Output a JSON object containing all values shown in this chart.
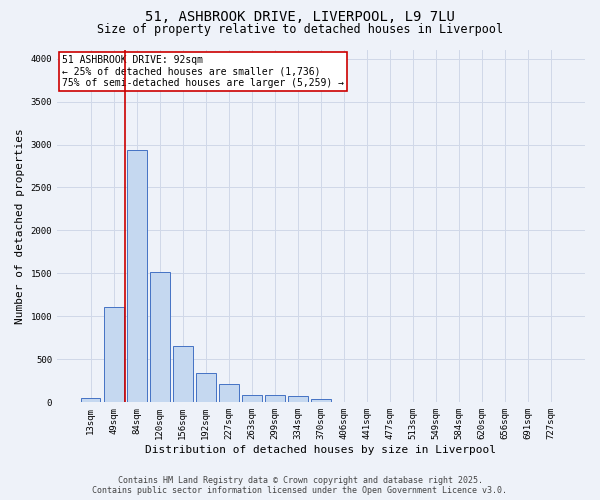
{
  "title_line1": "51, ASHBROOK DRIVE, LIVERPOOL, L9 7LU",
  "title_line2": "Size of property relative to detached houses in Liverpool",
  "xlabel": "Distribution of detached houses by size in Liverpool",
  "ylabel": "Number of detached properties",
  "categories": [
    "13sqm",
    "49sqm",
    "84sqm",
    "120sqm",
    "156sqm",
    "192sqm",
    "227sqm",
    "263sqm",
    "299sqm",
    "334sqm",
    "370sqm",
    "406sqm",
    "441sqm",
    "477sqm",
    "513sqm",
    "549sqm",
    "584sqm",
    "620sqm",
    "656sqm",
    "691sqm",
    "727sqm"
  ],
  "bar_values": [
    50,
    1110,
    2940,
    1520,
    650,
    340,
    215,
    90,
    90,
    75,
    35,
    5,
    0,
    0,
    0,
    0,
    0,
    0,
    0,
    0,
    0
  ],
  "bar_color": "#c5d8f0",
  "bar_edge_color": "#4472c4",
  "grid_color": "#d0d8e8",
  "background_color": "#eef2f9",
  "vline_color": "#cc0000",
  "vline_x_index": 1.5,
  "annotation_text": "51 ASHBROOK DRIVE: 92sqm\n← 25% of detached houses are smaller (1,736)\n75% of semi-detached houses are larger (5,259) →",
  "annotation_box_color": "#cc0000",
  "ylim": [
    0,
    4100
  ],
  "yticks": [
    0,
    500,
    1000,
    1500,
    2000,
    2500,
    3000,
    3500,
    4000
  ],
  "footer_line1": "Contains HM Land Registry data © Crown copyright and database right 2025.",
  "footer_line2": "Contains public sector information licensed under the Open Government Licence v3.0.",
  "title_fontsize": 10,
  "subtitle_fontsize": 8.5,
  "tick_fontsize": 6.5,
  "ylabel_fontsize": 8,
  "xlabel_fontsize": 8,
  "annotation_fontsize": 7,
  "footer_fontsize": 6
}
